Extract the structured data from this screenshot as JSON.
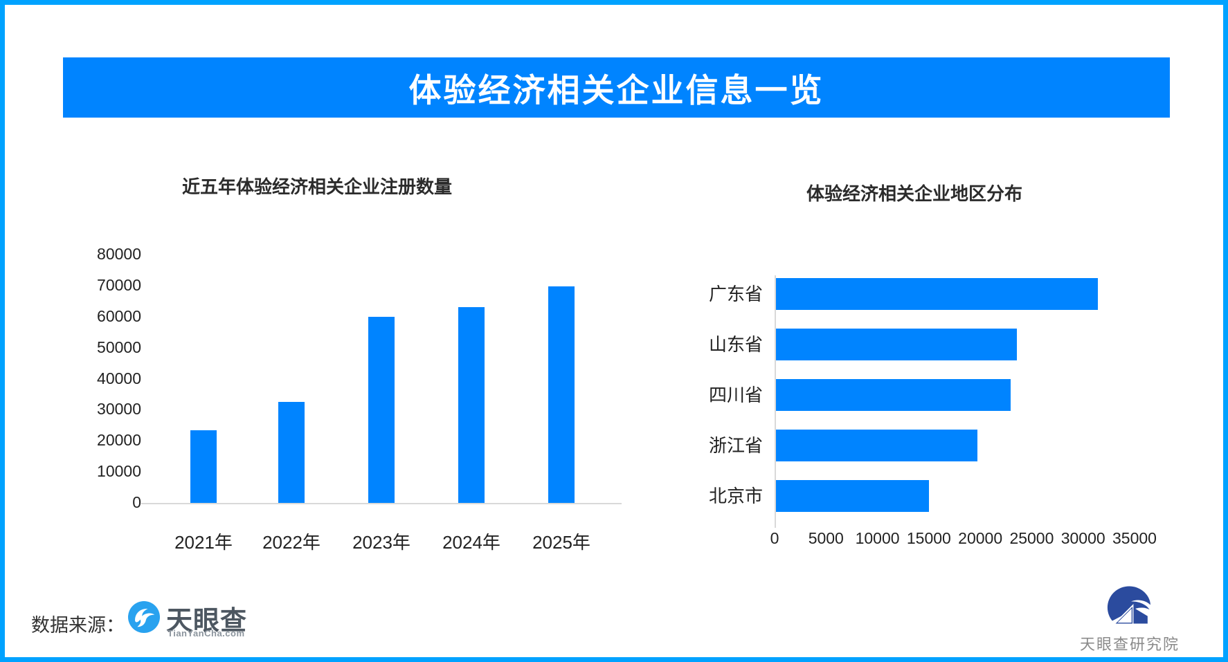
{
  "banner": {
    "title": "体验经济相关企业信息一览",
    "bg_color": "#0084ff",
    "text_color": "#ffffff",
    "frame_border_color": "#00a2ff"
  },
  "chart_data": [
    {
      "type": "bar",
      "orientation": "vertical",
      "title": "近五年体验经济相关企业注册数量",
      "categories": [
        "2021年",
        "2022年",
        "2023年",
        "2024年",
        "2025年"
      ],
      "values": [
        23500,
        32600,
        59900,
        63000,
        69800
      ],
      "ylabel": "",
      "xlabel": "",
      "ylim": [
        0,
        80000
      ],
      "yticks": [
        0,
        10000,
        20000,
        30000,
        40000,
        50000,
        60000,
        70000,
        80000
      ],
      "bar_color": "#0084ff",
      "grid": false,
      "legend": "none"
    },
    {
      "type": "bar",
      "orientation": "horizontal",
      "title": "体验经济相关企业地区分布",
      "categories": [
        "广东省",
        "山东省",
        "四川省",
        "浙江省",
        "北京市"
      ],
      "values": [
        31300,
        23400,
        22800,
        19600,
        14900
      ],
      "xlabel": "",
      "ylabel": "",
      "xlim": [
        0,
        35000
      ],
      "xticks": [
        0,
        5000,
        10000,
        15000,
        20000,
        25000,
        30000,
        35000
      ],
      "bar_color": "#0084ff",
      "grid": false,
      "legend": "none"
    }
  ],
  "footer": {
    "source_label": "数据来源：",
    "tianyancha": {
      "name": "天眼查",
      "domain": "TianYanCha.com",
      "logo_color": "#29a2ef"
    },
    "institute": {
      "name": "天眼查研究院",
      "logo_color": "#2b4b9e"
    }
  }
}
